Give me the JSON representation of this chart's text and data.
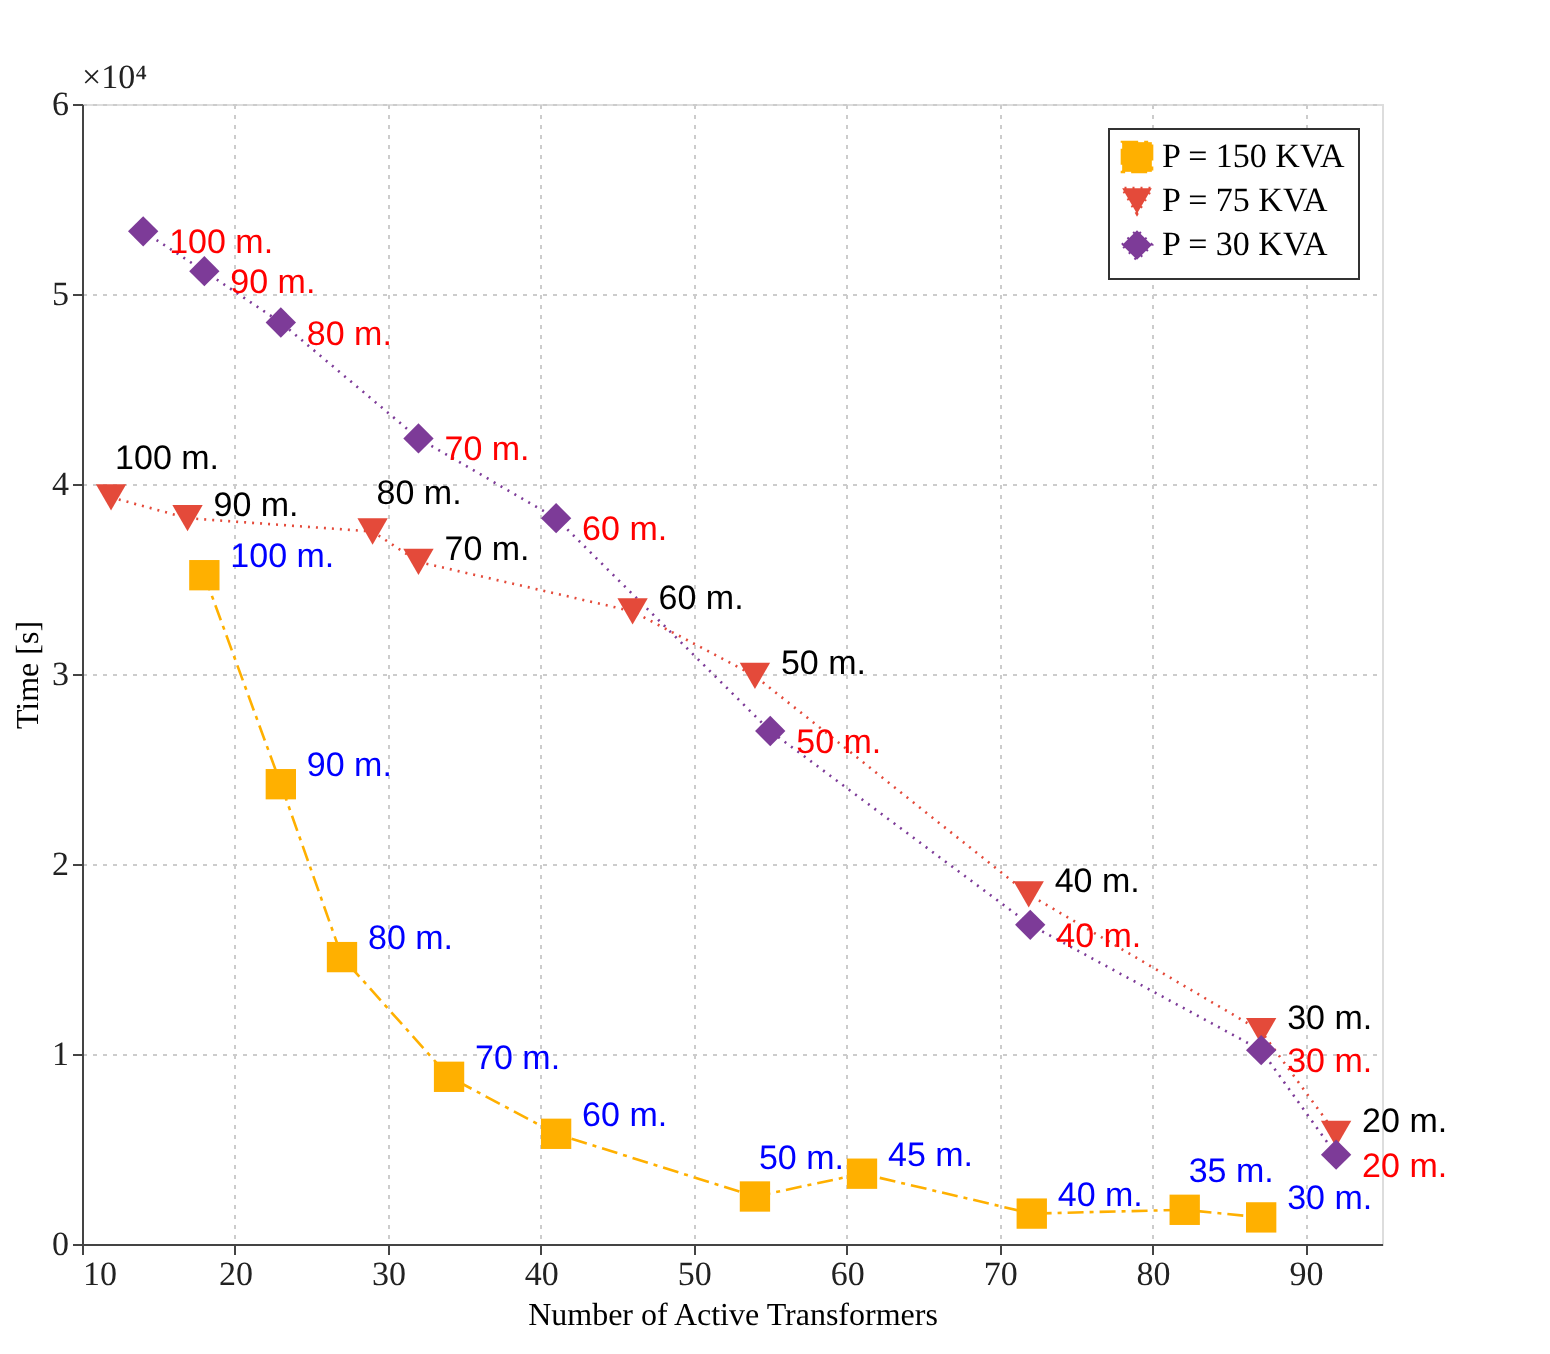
{
  "chart_data": {
    "type": "line",
    "xlabel": "Number of Active Transformers",
    "ylabel": "Time [s]",
    "xlim": [
      10,
      95
    ],
    "xticks": [
      10,
      20,
      30,
      40,
      50,
      60,
      70,
      80,
      90
    ],
    "ylim": [
      0,
      6
    ],
    "yticks": [
      0,
      1,
      2,
      3,
      4,
      5,
      6
    ],
    "grid": true,
    "legend": "top right",
    "series": [
      {
        "name": "P = 150 KVA",
        "color": "#ffb000",
        "marker": "square",
        "line_style": "dashed",
        "x": [
          18,
          23,
          27,
          34,
          41,
          54,
          61,
          72.1,
          82.1,
          87.1
        ],
        "values": [
          3.52,
          2.42,
          1.51,
          0.88,
          0.58,
          0.25,
          0.37,
          0.16,
          0.18,
          0.14
        ]
      },
      {
        "name": "P = 75 KVA",
        "color": "#e44a3a",
        "marker": "triangle",
        "line_style": "dotted",
        "x": [
          11.9,
          16.9,
          29,
          32,
          46,
          54,
          71.9,
          87.1,
          92
        ],
        "values": [
          3.93,
          3.82,
          3.75,
          3.59,
          3.33,
          2.99,
          1.84,
          1.12,
          0.58
        ]
      },
      {
        "name": "P = 30 KVA",
        "color": "#7d3b98",
        "marker": "diamond",
        "line_style": "dotted",
        "x": [
          14,
          18,
          23,
          32,
          41,
          55,
          72,
          87.1,
          92
        ],
        "values": [
          5.33,
          5.12,
          4.85,
          4.24,
          3.82,
          2.7,
          1.68,
          1.02,
          0.47
        ]
      }
    ],
    "annotations": [
      "×10⁴",
      {
        "text": "100 m.",
        "x": 18,
        "y": 3.52
      },
      {
        "text": "90 m.",
        "x": 23,
        "y": 2.42
      },
      {
        "text": "80 m.",
        "x": 27,
        "y": 1.51
      },
      {
        "text": "70 m.",
        "x": 34,
        "y": 0.88
      },
      {
        "text": "60 m.",
        "x": 41,
        "y": 0.58
      },
      {
        "text": "50 m.",
        "x": 54,
        "y": 0.25
      },
      {
        "text": "45 m.",
        "x": 61,
        "y": 0.37
      },
      {
        "text": "40 m.",
        "x": 72.1,
        "y": 0.16
      },
      {
        "text": "35 m.",
        "x": 82.1,
        "y": 0.18
      },
      {
        "text": "30 m.",
        "x": 87.1,
        "y": 0.14
      },
      {
        "text": "100 m.",
        "x": 11.9,
        "y": 3.93
      },
      {
        "text": "90 m.",
        "x": 16.9,
        "y": 3.82
      },
      {
        "text": "80 m.",
        "x": 29,
        "y": 3.75
      },
      {
        "text": "70 m.",
        "x": 32,
        "y": 3.59
      },
      {
        "text": "60 m.",
        "x": 46,
        "y": 3.33
      },
      {
        "text": "50 m.",
        "x": 54,
        "y": 2.99
      },
      {
        "text": "40 m.",
        "x": 71.9,
        "y": 1.84
      },
      {
        "text": "30 m.",
        "x": 87.1,
        "y": 1.12
      },
      {
        "text": "20 m.",
        "x": 92,
        "y": 0.58
      },
      {
        "text": "100 m.",
        "x": 14,
        "y": 5.33
      },
      {
        "text": "90 m.",
        "x": 18,
        "y": 5.12
      },
      {
        "text": "80 m.",
        "x": 23,
        "y": 4.85
      },
      {
        "text": "70 m.",
        "x": 32,
        "y": 4.24
      },
      {
        "text": "60 m.",
        "x": 41,
        "y": 3.82
      },
      {
        "text": "50 m.",
        "x": 55,
        "y": 2.7
      },
      {
        "text": "40 m.",
        "x": 72,
        "y": 1.68
      },
      {
        "text": "30 m.",
        "x": 87.1,
        "y": 1.02
      },
      {
        "text": "20 m.",
        "x": 92,
        "y": 0.47
      }
    ]
  }
}
